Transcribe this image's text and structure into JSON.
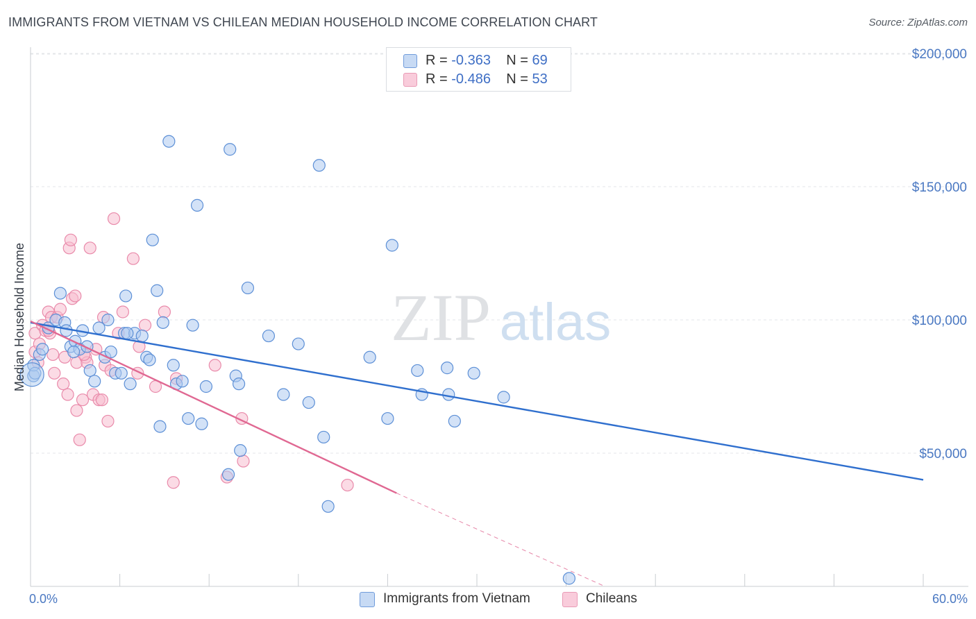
{
  "header": {
    "title": "IMMIGRANTS FROM VIETNAM VS CHILEAN MEDIAN HOUSEHOLD INCOME CORRELATION CHART",
    "source": "Source: ZipAtlas.com"
  },
  "watermark": {
    "part1": "ZIP",
    "part2": "atlas"
  },
  "legend": {
    "series1": {
      "r_label": "R = ",
      "r_value": "-0.363",
      "n_label": "N = ",
      "n_value": "69"
    },
    "series2": {
      "r_label": "R = ",
      "r_value": "-0.486",
      "n_label": "N = ",
      "n_value": "53"
    }
  },
  "colors": {
    "blue_fill": "#aecbf0",
    "blue_stroke": "#5c8fd6",
    "blue_line": "#2f6fce",
    "pink_fill": "#f7bdd0",
    "pink_stroke": "#e98aaa",
    "pink_line": "#e06892"
  },
  "chart_data": {
    "type": "scatter",
    "title": "IMMIGRANTS FROM VIETNAM VS CHILEAN MEDIAN HOUSEHOLD INCOME CORRELATION CHART",
    "xlabel": "",
    "ylabel": "Median Household Income",
    "xlim": [
      0,
      60
    ],
    "ylim": [
      0,
      210000
    ],
    "x_tick_labels": [
      "0.0%",
      "60.0%"
    ],
    "y_ticks": [
      50000,
      100000,
      150000,
      200000
    ],
    "y_tick_labels": [
      "$50,000",
      "$100,000",
      "$150,000",
      "$200,000"
    ],
    "grid": "horizontal dashed",
    "legend_position": "top-center",
    "series": [
      {
        "name": "Immigrants from Vietnam",
        "points": [
          [
            0.2,
            79000
          ],
          [
            0.2,
            83000
          ],
          [
            0.3,
            80000
          ],
          [
            0.6,
            87000
          ],
          [
            0.8,
            89000
          ],
          [
            1.2,
            97000
          ],
          [
            1.7,
            100000
          ],
          [
            2.0,
            110000
          ],
          [
            2.3,
            99000
          ],
          [
            2.4,
            96000
          ],
          [
            2.7,
            90000
          ],
          [
            3.0,
            92000
          ],
          [
            3.3,
            89000
          ],
          [
            3.5,
            96000
          ],
          [
            3.8,
            90000
          ],
          [
            4.0,
            81000
          ],
          [
            4.3,
            77000
          ],
          [
            4.6,
            97000
          ],
          [
            5.0,
            86000
          ],
          [
            5.2,
            100000
          ],
          [
            5.4,
            88000
          ],
          [
            5.7,
            80000
          ],
          [
            6.1,
            80000
          ],
          [
            6.3,
            95000
          ],
          [
            6.4,
            109000
          ],
          [
            6.7,
            76000
          ],
          [
            7.0,
            95000
          ],
          [
            7.5,
            94000
          ],
          [
            7.8,
            86000
          ],
          [
            8.0,
            85000
          ],
          [
            8.2,
            130000
          ],
          [
            8.5,
            111000
          ],
          [
            8.7,
            60000
          ],
          [
            8.9,
            99000
          ],
          [
            9.3,
            167000
          ],
          [
            9.6,
            83000
          ],
          [
            9.8,
            76000
          ],
          [
            10.2,
            77000
          ],
          [
            10.6,
            63000
          ],
          [
            10.9,
            98000
          ],
          [
            11.2,
            143000
          ],
          [
            11.5,
            61000
          ],
          [
            11.8,
            75000
          ],
          [
            13.4,
            164000
          ],
          [
            13.8,
            79000
          ],
          [
            14.0,
            76000
          ],
          [
            14.1,
            51000
          ],
          [
            14.6,
            112000
          ],
          [
            16.0,
            94000
          ],
          [
            17.0,
            72000
          ],
          [
            18.0,
            91000
          ],
          [
            18.7,
            69000
          ],
          [
            19.4,
            158000
          ],
          [
            19.7,
            56000
          ],
          [
            20.0,
            30000
          ],
          [
            22.8,
            86000
          ],
          [
            24.0,
            63000
          ],
          [
            24.3,
            128000
          ],
          [
            26.0,
            81000
          ],
          [
            26.3,
            72000
          ],
          [
            28.0,
            82000
          ],
          [
            28.1,
            72000
          ],
          [
            28.5,
            62000
          ],
          [
            29.8,
            80000
          ],
          [
            31.8,
            71000
          ],
          [
            36.2,
            3000
          ],
          [
            13.3,
            42000
          ],
          [
            6.5,
            95000
          ],
          [
            2.9,
            88000
          ]
        ]
      },
      {
        "name": "Chileans",
        "points": [
          [
            0.3,
            95000
          ],
          [
            0.3,
            88000
          ],
          [
            0.5,
            84000
          ],
          [
            0.8,
            98000
          ],
          [
            1.0,
            96000
          ],
          [
            1.2,
            103000
          ],
          [
            1.3,
            95000
          ],
          [
            1.4,
            101000
          ],
          [
            1.5,
            87000
          ],
          [
            1.6,
            80000
          ],
          [
            1.8,
            101000
          ],
          [
            2.0,
            104000
          ],
          [
            2.2,
            76000
          ],
          [
            2.3,
            86000
          ],
          [
            2.5,
            72000
          ],
          [
            2.6,
            127000
          ],
          [
            2.7,
            130000
          ],
          [
            2.8,
            108000
          ],
          [
            3.0,
            109000
          ],
          [
            3.1,
            84000
          ],
          [
            3.1,
            66000
          ],
          [
            3.3,
            55000
          ],
          [
            3.5,
            70000
          ],
          [
            3.7,
            86000
          ],
          [
            3.8,
            84000
          ],
          [
            4.0,
            127000
          ],
          [
            4.2,
            72000
          ],
          [
            4.4,
            89000
          ],
          [
            4.6,
            70000
          ],
          [
            4.8,
            70000
          ],
          [
            4.9,
            101000
          ],
          [
            5.0,
            83000
          ],
          [
            5.2,
            62000
          ],
          [
            5.4,
            81000
          ],
          [
            5.6,
            138000
          ],
          [
            5.9,
            95000
          ],
          [
            6.2,
            103000
          ],
          [
            6.9,
            123000
          ],
          [
            7.2,
            80000
          ],
          [
            7.3,
            90000
          ],
          [
            7.7,
            98000
          ],
          [
            8.4,
            75000
          ],
          [
            9.0,
            103000
          ],
          [
            9.6,
            39000
          ],
          [
            9.8,
            78000
          ],
          [
            12.4,
            83000
          ],
          [
            13.2,
            41000
          ],
          [
            14.2,
            63000
          ],
          [
            14.3,
            47000
          ],
          [
            21.3,
            38000
          ],
          [
            1.2,
            96000
          ],
          [
            0.6,
            91000
          ],
          [
            3.6,
            87000
          ]
        ]
      }
    ],
    "trend_lines": [
      {
        "series": "Immigrants from Vietnam",
        "x": [
          0,
          60
        ],
        "y": [
          99000,
          40000
        ]
      },
      {
        "series": "Chileans",
        "x": [
          0,
          24.6
        ],
        "y": [
          99500,
          35000
        ],
        "dashed_extension": {
          "x": [
            24.6,
            38.6
          ],
          "y": [
            35000,
            0
          ]
        }
      }
    ]
  }
}
